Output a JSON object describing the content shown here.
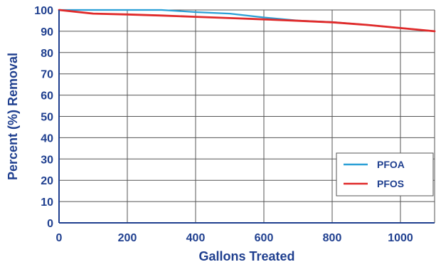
{
  "chart_data": {
    "type": "line",
    "title": "",
    "xlabel": "Gallons Treated",
    "ylabel": "Percent (%) Removal",
    "xlim": [
      0,
      1100
    ],
    "ylim": [
      0,
      100
    ],
    "xticks": [
      0,
      200,
      400,
      600,
      800,
      1000
    ],
    "yticks": [
      0,
      10,
      20,
      30,
      40,
      50,
      60,
      70,
      80,
      90,
      100
    ],
    "grid": true,
    "legend_position": "bottom-right",
    "series": [
      {
        "name": "PFOA",
        "color": "#2a9fd6",
        "x": [
          0,
          100,
          200,
          300,
          400,
          500,
          600,
          700,
          800,
          900,
          1000,
          1100
        ],
        "y": [
          100,
          100,
          100,
          100,
          99,
          98.3,
          96.5,
          95,
          94.3,
          93,
          91.5,
          90
        ]
      },
      {
        "name": "PFOS",
        "color": "#e02a2a",
        "x": [
          0,
          100,
          200,
          300,
          400,
          500,
          600,
          700,
          800,
          900,
          1000,
          1100
        ],
        "y": [
          100,
          98.3,
          97.9,
          97.4,
          96.8,
          96.2,
          95.6,
          94.9,
          94.2,
          93,
          91.5,
          90
        ]
      }
    ],
    "colors": {
      "text": "#1f3f8f",
      "grid": "#555555",
      "axis": "#1f3f8f"
    }
  }
}
